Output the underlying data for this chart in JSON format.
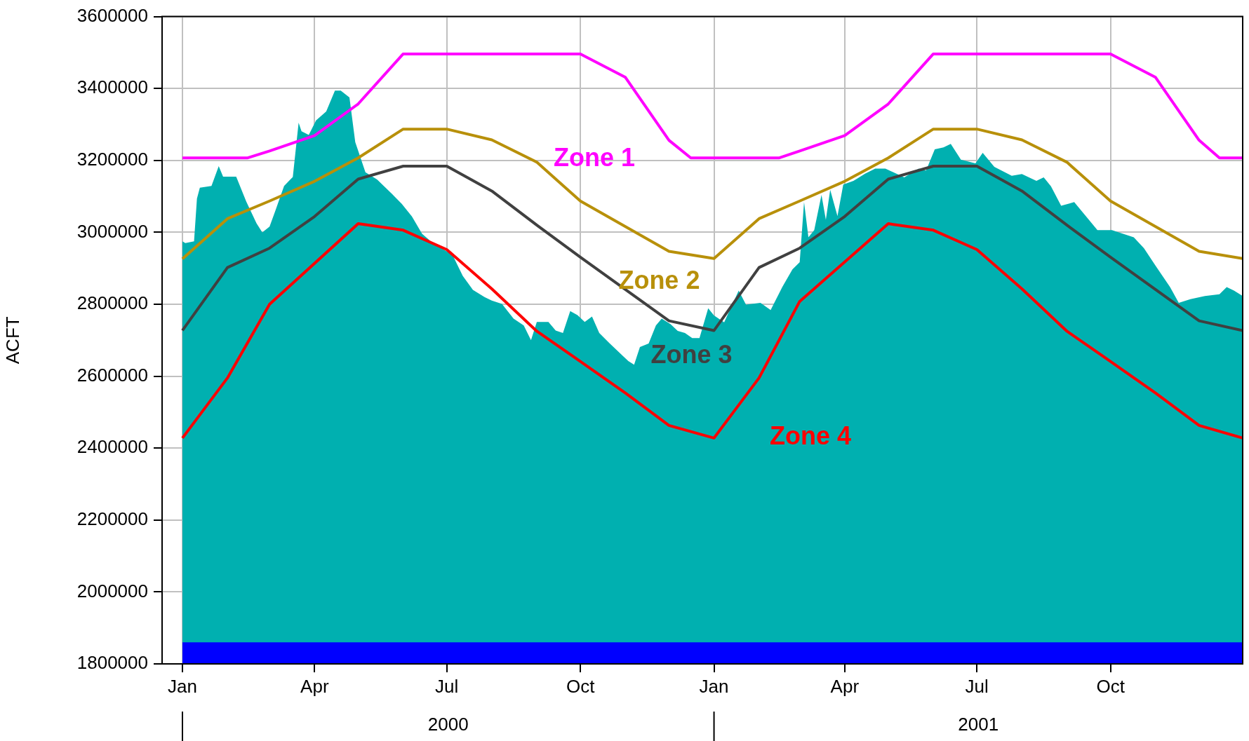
{
  "chart_data": {
    "type": "line",
    "ylabel": "ACFT",
    "xlim": [
      "1999-12-18",
      "2001-12-31"
    ],
    "ylim": [
      1800000,
      3600000
    ],
    "xticks": [
      {
        "value": "2000-01-01",
        "label": "Jan"
      },
      {
        "value": "2000-04-01",
        "label": "Apr"
      },
      {
        "value": "2000-07-01",
        "label": "Jul"
      },
      {
        "value": "2000-10-01",
        "label": "Oct"
      },
      {
        "value": "2001-01-01",
        "label": "Jan"
      },
      {
        "value": "2001-04-01",
        "label": "Apr"
      },
      {
        "value": "2001-07-01",
        "label": "Jul"
      },
      {
        "value": "2001-10-01",
        "label": "Oct"
      }
    ],
    "yticks": [
      1800000,
      2000000,
      2200000,
      2400000,
      2600000,
      2800000,
      3000000,
      3200000,
      3400000,
      3600000
    ],
    "grid": true,
    "legend": false,
    "marker": "none",
    "line_style": "solid",
    "annotations": [
      "2000",
      "2001"
    ],
    "series": [
      {
        "name": "Zone 1",
        "color": "#ff00ff",
        "x": [
          "2000-01-01",
          "2000-02-15",
          "2000-03-01",
          "2000-04-01",
          "2000-05-01",
          "2000-06-01",
          "2000-10-01",
          "2000-11-01",
          "2000-12-01",
          "2000-12-16",
          "2001-01-01",
          "2001-02-15",
          "2001-03-01",
          "2001-04-01",
          "2001-05-01",
          "2001-06-01",
          "2001-10-01",
          "2001-11-01",
          "2001-12-01",
          "2001-12-15",
          "2001-12-31"
        ],
        "values": [
          3207000,
          3207000,
          3226000,
          3269000,
          3357000,
          3496000,
          3496000,
          3431000,
          3256000,
          3207000,
          3207000,
          3207000,
          3226000,
          3269000,
          3357000,
          3496000,
          3496000,
          3431000,
          3256000,
          3207000,
          3207000
        ]
      },
      {
        "name": "Zone 2",
        "color": "#b8900a",
        "x": [
          "2000-01-01",
          "2000-02-01",
          "2000-03-01",
          "2000-04-01",
          "2000-05-01",
          "2000-06-01",
          "2000-07-01",
          "2000-08-01",
          "2000-09-01",
          "2000-10-01",
          "2000-12-01",
          "2001-01-01",
          "2001-02-01",
          "2001-03-01",
          "2001-04-01",
          "2001-05-01",
          "2001-06-01",
          "2001-07-01",
          "2001-08-01",
          "2001-09-01",
          "2001-10-01",
          "2001-12-01",
          "2001-12-31"
        ],
        "values": [
          2926000,
          3038000,
          3087000,
          3142000,
          3207000,
          3287000,
          3287000,
          3257000,
          3195000,
          3087000,
          2947000,
          2927000,
          3038000,
          3087000,
          3142000,
          3207000,
          3287000,
          3287000,
          3257000,
          3195000,
          3087000,
          2947000,
          2927000
        ]
      },
      {
        "name": "Zone 3",
        "color": "#404040",
        "x": [
          "2000-01-01",
          "2000-02-01",
          "2000-03-01",
          "2000-04-01",
          "2000-05-01",
          "2000-06-01",
          "2000-07-01",
          "2000-08-01",
          "2000-09-01",
          "2000-10-01",
          "2000-12-01",
          "2001-01-01",
          "2001-02-01",
          "2001-03-01",
          "2001-04-01",
          "2001-05-01",
          "2001-06-01",
          "2001-07-01",
          "2001-08-01",
          "2001-09-01",
          "2001-10-01",
          "2001-12-01",
          "2001-12-31"
        ],
        "values": [
          2727000,
          2902000,
          2956000,
          3044000,
          3148000,
          3184000,
          3184000,
          3115000,
          3020000,
          2931000,
          2754000,
          2727000,
          2902000,
          2956000,
          3044000,
          3148000,
          3184000,
          3184000,
          3115000,
          3020000,
          2931000,
          2754000,
          2727000
        ]
      },
      {
        "name": "Zone 4",
        "color": "#ff0000",
        "x": [
          "2000-01-01",
          "2000-02-01",
          "2000-03-01",
          "2000-05-01",
          "2000-06-01",
          "2000-07-01",
          "2000-08-01",
          "2000-09-01",
          "2000-10-01",
          "2000-11-01",
          "2000-12-01",
          "2001-01-01",
          "2001-02-01",
          "2001-03-01",
          "2001-05-01",
          "2001-06-01",
          "2001-07-01",
          "2001-08-01",
          "2001-09-01",
          "2001-10-01",
          "2001-11-01",
          "2001-12-01",
          "2001-12-31"
        ],
        "values": [
          2428000,
          2595000,
          2800000,
          3024000,
          3006000,
          2952000,
          2843000,
          2725000,
          2641000,
          2553000,
          2463000,
          2428000,
          2595000,
          2808000,
          3024000,
          3006000,
          2952000,
          2843000,
          2725000,
          2641000,
          2553000,
          2463000,
          2428000
        ]
      },
      {
        "type": "area",
        "color": "#00b0b0",
        "x": [
          "2000-01-01",
          "2000-01-03",
          "2000-01-09",
          "2000-01-11",
          "2000-01-13",
          "2000-01-21",
          "2000-01-26",
          "2000-01-29",
          "2000-02-07",
          "2000-02-14",
          "2000-02-21",
          "2000-02-25",
          "2000-03-01",
          "2000-03-05",
          "2000-03-11",
          "2000-03-17",
          "2000-03-21",
          "2000-03-23",
          "2000-03-28",
          "2000-04-02",
          "2000-04-09",
          "2000-04-15",
          "2000-04-19",
          "2000-04-25",
          "2000-04-29",
          "2000-05-06",
          "2000-05-14",
          "2000-05-24",
          "2000-05-31",
          "2000-06-07",
          "2000-06-14",
          "2000-06-20",
          "2000-06-27",
          "2000-07-05",
          "2000-07-12",
          "2000-07-19",
          "2000-07-27",
          "2000-08-01",
          "2000-08-08",
          "2000-08-16",
          "2000-08-23",
          "2000-08-28",
          "2000-09-01",
          "2000-09-04",
          "2000-09-09",
          "2000-09-14",
          "2000-09-19",
          "2000-09-24",
          "2000-09-29",
          "2000-10-04",
          "2000-10-09",
          "2000-10-14",
          "2000-10-21",
          "2000-10-29",
          "2000-11-03",
          "2000-11-07",
          "2000-11-11",
          "2000-11-17",
          "2000-11-22",
          "2000-11-26",
          "2000-12-02",
          "2000-12-07",
          "2000-12-12",
          "2000-12-17",
          "2000-12-22",
          "2000-12-28",
          "2001-01-01",
          "2001-01-08",
          "2001-01-18",
          "2001-01-23",
          "2001-02-02",
          "2001-02-09",
          "2001-02-17",
          "2001-02-24",
          "2001-03-01",
          "2001-03-04",
          "2001-03-07",
          "2001-03-11",
          "2001-03-16",
          "2001-03-19",
          "2001-03-22",
          "2001-03-27",
          "2001-03-31",
          "2001-04-07",
          "2001-04-15",
          "2001-04-22",
          "2001-04-29",
          "2001-05-12",
          "2001-05-22",
          "2001-05-27",
          "2001-06-02",
          "2001-06-08",
          "2001-06-13",
          "2001-06-20",
          "2001-06-30",
          "2001-07-05",
          "2001-07-13",
          "2001-07-25",
          "2001-08-01",
          "2001-08-11",
          "2001-08-16",
          "2001-08-21",
          "2001-08-28",
          "2001-09-06",
          "2001-09-12",
          "2001-09-22",
          "2001-10-02",
          "2001-10-17",
          "2001-10-24",
          "2001-11-01",
          "2001-11-11",
          "2001-11-17",
          "2001-11-25",
          "2001-12-05",
          "2001-12-15",
          "2001-12-20",
          "2001-12-25",
          "2001-12-31"
        ],
        "values": [
          2975000,
          2970000,
          2975000,
          3094000,
          3124000,
          3129000,
          3184000,
          3155000,
          3155000,
          3085000,
          3025000,
          3000000,
          3016000,
          3060000,
          3129000,
          3154000,
          3305000,
          3281000,
          3271000,
          3311000,
          3336000,
          3394000,
          3394000,
          3375000,
          3251000,
          3167000,
          3147000,
          3108000,
          3079000,
          3044000,
          2996000,
          2975000,
          2957000,
          2937000,
          2879000,
          2840000,
          2820000,
          2810000,
          2801000,
          2760000,
          2741000,
          2700000,
          2751000,
          2751000,
          2751000,
          2727000,
          2720000,
          2781000,
          2770000,
          2751000,
          2766000,
          2720000,
          2692000,
          2661000,
          2642000,
          2632000,
          2681000,
          2691000,
          2741000,
          2760000,
          2745000,
          2726000,
          2720000,
          2706000,
          2706000,
          2789000,
          2769000,
          2750000,
          2838000,
          2799000,
          2804000,
          2784000,
          2848000,
          2897000,
          2917000,
          3084000,
          2986000,
          3006000,
          3104000,
          3035000,
          3118000,
          3045000,
          3133000,
          3143000,
          3163000,
          3177000,
          3177000,
          3153000,
          3177000,
          3172000,
          3231000,
          3236000,
          3246000,
          3202000,
          3192000,
          3221000,
          3182000,
          3157000,
          3162000,
          3143000,
          3153000,
          3128000,
          3074000,
          3084000,
          3055000,
          3006000,
          3006000,
          2986000,
          2956000,
          2907000,
          2848000,
          2804000,
          2814000,
          2823000,
          2828000,
          2848000,
          2838000,
          2823000
        ]
      },
      {
        "type": "area",
        "color": "#0000ff",
        "x": [
          "2000-01-01",
          "2001-12-31"
        ],
        "values": [
          1860000,
          1860000
        ]
      }
    ]
  }
}
